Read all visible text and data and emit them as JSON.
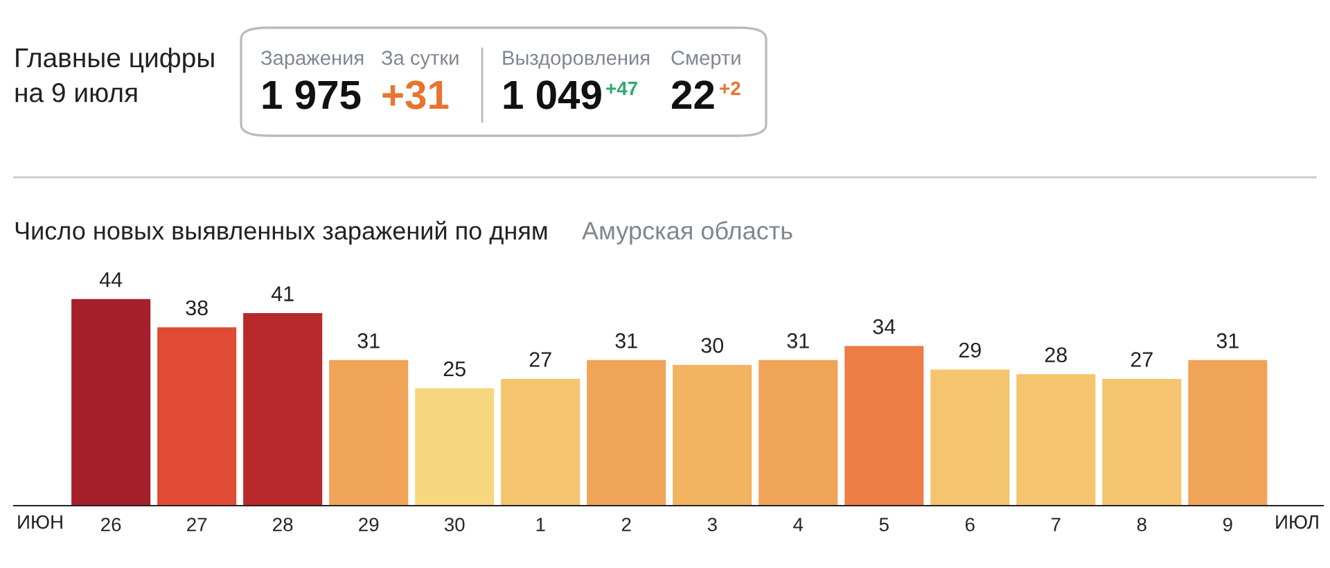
{
  "chart_data": {
    "type": "bar",
    "title": "Число новых выявленных заражений по дням",
    "subtitle": "Амурская область",
    "categories": [
      "26",
      "27",
      "28",
      "29",
      "30",
      "1",
      "2",
      "3",
      "4",
      "5",
      "6",
      "7",
      "8",
      "9"
    ],
    "values": [
      44,
      38,
      41,
      31,
      25,
      27,
      31,
      30,
      31,
      34,
      29,
      28,
      27,
      31
    ],
    "colors": [
      "#a51f2b",
      "#e04b35",
      "#b8292b",
      "#f0a458",
      "#f6d77f",
      "#f4c46e",
      "#f0a458",
      "#f2b461",
      "#f0a458",
      "#eb7d45",
      "#f4c46e",
      "#f4c46e",
      "#f4c46e",
      "#f0a458"
    ],
    "data_labels": true,
    "grid": false,
    "legend": false,
    "annotations": [
      "Главные цифры\nна 9 июля",
      "Заражения",
      "1 975",
      "За сутки",
      "+31",
      "Выздоровления",
      "1 049",
      "+47",
      "Смерти",
      "22",
      "+2",
      "ИЮН",
      "ИЮЛ"
    ]
  }
}
